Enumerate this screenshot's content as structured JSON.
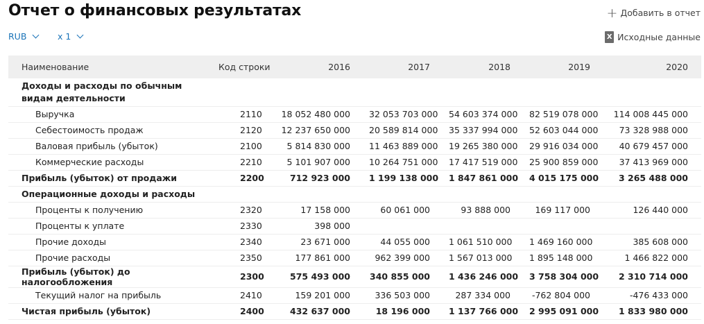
{
  "header": {
    "title": "Отчет о финансовых результатах",
    "add_to_report": "Добавить в отчет",
    "source_data": "Исходные данные",
    "currency": "RUB",
    "multiplier": "х 1"
  },
  "icons": {
    "add": "plus-icon",
    "source": "excel-icon",
    "dropdown": "chevron-down-icon"
  },
  "table": {
    "columns": [
      "Наименование",
      "Код строки",
      "2016",
      "2017",
      "2018",
      "2019",
      "2020"
    ],
    "rows": [
      {
        "name": "Доходы и расходы по обычным видам деятельности",
        "code": "",
        "values": [
          "",
          "",
          "",
          "",
          ""
        ],
        "style": "section"
      },
      {
        "name": "Выручка",
        "code": "2110",
        "values": [
          "18 052 480 000",
          "32 053 703 000",
          "54 603 374 000",
          "82 519 078 000",
          "114 008 445 000"
        ],
        "style": "indent"
      },
      {
        "name": "Себестоимость продаж",
        "code": "2120",
        "values": [
          "12 237 650 000",
          "20 589 814 000",
          "35 337 994 000",
          "52 603 044 000",
          "73 328 988 000"
        ],
        "style": "indent"
      },
      {
        "name": "Валовая прибыль (убыток)",
        "code": "2100",
        "values": [
          "5 814 830 000",
          "11 463 889 000",
          "19 265 380 000",
          "29 916 034 000",
          "40 679 457 000"
        ],
        "style": "indent"
      },
      {
        "name": "Коммерческие расходы",
        "code": "2210",
        "values": [
          "5 101 907 000",
          "10 264 751 000",
          "17 417 519 000",
          "25 900 859 000",
          "37 413 969 000"
        ],
        "style": "indent"
      },
      {
        "name": "Прибыль (убыток) от продажи",
        "code": "2200",
        "values": [
          "712 923 000",
          "1 199 138 000",
          "1 847 861 000",
          "4 015 175 000",
          "3 265 488 000"
        ],
        "style": "bold"
      },
      {
        "name": "Операционные доходы и расходы",
        "code": "",
        "values": [
          "",
          "",
          "",
          "",
          ""
        ],
        "style": "section"
      },
      {
        "name": "Проценты к получению",
        "code": "2320",
        "values": [
          "17 158 000",
          "60 061 000",
          "93 888 000",
          "169 117 000",
          "126 440 000"
        ],
        "style": "indent"
      },
      {
        "name": "Проценты к уплате",
        "code": "2330",
        "values": [
          "398 000",
          "",
          "",
          "",
          ""
        ],
        "style": "indent"
      },
      {
        "name": "Прочие доходы",
        "code": "2340",
        "values": [
          "23 671 000",
          "44 055 000",
          "1 061 510 000",
          "1 469 160 000",
          "385 608 000"
        ],
        "style": "indent"
      },
      {
        "name": "Прочие расходы",
        "code": "2350",
        "values": [
          "177 861 000",
          "962 399 000",
          "1 567 013 000",
          "1 895 148 000",
          "1 466 822 000"
        ],
        "style": "indent"
      },
      {
        "name": "Прибыль (убыток) до налогообложения",
        "code": "2300",
        "values": [
          "575 493 000",
          "340 855 000",
          "1 436 246 000",
          "3 758 304 000",
          "2 310 714 000"
        ],
        "style": "bold"
      },
      {
        "name": "Текущий налог на прибыль",
        "code": "2410",
        "values": [
          "159 201 000",
          "336 503 000",
          "287 334 000",
          "-762 804 000",
          "-476 433 000"
        ],
        "style": "indent"
      },
      {
        "name": "Чистая прибыль (убыток)",
        "code": "2400",
        "values": [
          "432 637 000",
          "18 196 000",
          "1 137 766 000",
          "2 995 091 000",
          "1 833 980 000"
        ],
        "style": "bold"
      }
    ]
  }
}
